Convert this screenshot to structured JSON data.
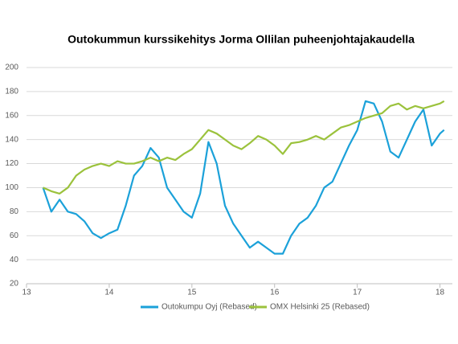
{
  "chart_data": {
    "type": "line",
    "title": "Outokummun kurssikehitys Jorma Ollilan puheenjohtajakaudella",
    "x": [
      13.2,
      13.3,
      13.4,
      13.5,
      13.6,
      13.7,
      13.8,
      13.9,
      14.0,
      14.1,
      14.2,
      14.3,
      14.4,
      14.5,
      14.6,
      14.7,
      14.8,
      14.9,
      15.0,
      15.1,
      15.2,
      15.3,
      15.4,
      15.5,
      15.6,
      15.7,
      15.8,
      15.9,
      16.0,
      16.1,
      16.2,
      16.3,
      16.4,
      16.5,
      16.6,
      16.7,
      16.8,
      16.9,
      17.0,
      17.1,
      17.2,
      17.3,
      17.4,
      17.5,
      17.6,
      17.7,
      17.8,
      17.9,
      18.0,
      18.05
    ],
    "series": [
      {
        "name": "Outokumpu Oyj (Rebased)",
        "color": "#1ba1d9",
        "values": [
          100,
          80,
          90,
          80,
          78,
          72,
          62,
          58,
          62,
          65,
          85,
          110,
          118,
          133,
          125,
          100,
          90,
          80,
          75,
          95,
          138,
          120,
          85,
          70,
          60,
          50,
          55,
          50,
          45,
          45,
          60,
          70,
          75,
          85,
          100,
          105,
          120,
          135,
          148,
          172,
          170,
          155,
          130,
          125,
          140,
          155,
          165,
          135,
          145,
          148
        ]
      },
      {
        "name": "OMX Helsinki 25 (Rebased)",
        "color": "#9bc23c",
        "values": [
          100,
          97,
          95,
          100,
          110,
          115,
          118,
          120,
          118,
          122,
          120,
          120,
          122,
          125,
          122,
          125,
          123,
          128,
          132,
          140,
          148,
          145,
          140,
          135,
          132,
          137,
          143,
          140,
          135,
          128,
          137,
          138,
          140,
          143,
          140,
          145,
          150,
          152,
          155,
          158,
          160,
          162,
          168,
          170,
          165,
          168,
          166,
          168,
          170,
          172
        ]
      }
    ],
    "xlim": [
      13,
      18.15
    ],
    "xticks": [
      13,
      14,
      15,
      16,
      17,
      18
    ],
    "ylim": [
      20,
      200
    ],
    "yticks": [
      20,
      40,
      60,
      80,
      100,
      120,
      140,
      160,
      180,
      200
    ],
    "grid": true,
    "legend": "bottom"
  }
}
